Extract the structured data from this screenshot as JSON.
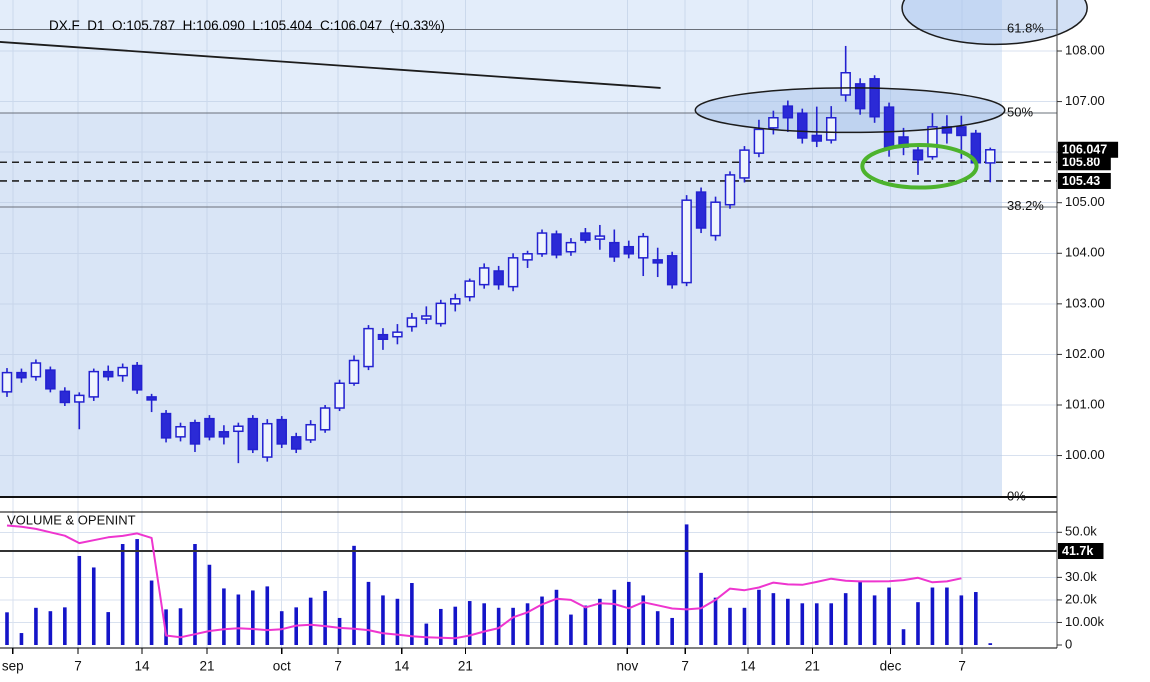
{
  "header": {
    "text": "DX.F  D1  O:105.787  H:106.090  L:105.404  C:106.047  (+0.33%)",
    "symbol": "DX.F",
    "timeframe": "D1",
    "open": "105.787",
    "high": "106.090",
    "low": "105.404",
    "close": "106.047",
    "change_pct": "(+0.33%)"
  },
  "colors": {
    "plot_bg": "#e3edfa",
    "fib_zone_bg": "#d9e5f6",
    "grid": "#b9c9e2",
    "candle_stroke": "#2321d0",
    "candle_down_fill": "#2b2ad6",
    "candle_up_fill": "#eff5fd",
    "volume_bar": "#1414c8",
    "oi_line": "#ee35cf",
    "marker_bg": "#000000",
    "marker_fg": "#ffffff",
    "annotation": "#1c1c1c",
    "green_circle": "#4db32d",
    "dashed_level": "#222222"
  },
  "price_axis": {
    "ticks": [
      {
        "label": "108.00",
        "value": 108
      },
      {
        "label": "107.00",
        "value": 107
      },
      {
        "label": "106.00",
        "value": 106
      },
      {
        "label": "105.00",
        "value": 105
      },
      {
        "label": "104.00",
        "value": 104
      },
      {
        "label": "103.00",
        "value": 103
      },
      {
        "label": "102.00",
        "value": 102
      },
      {
        "label": "101.00",
        "value": 101
      },
      {
        "label": "100.00",
        "value": 100
      }
    ],
    "markers": [
      {
        "label": "105.80",
        "value": 105.8
      },
      {
        "label": "106.047",
        "value": 106.047
      },
      {
        "label": "105.43",
        "value": 105.43
      }
    ]
  },
  "volume_axis": {
    "ticks": [
      {
        "label": "50.0k",
        "value": 50
      },
      {
        "label": "30.0k",
        "value": 30
      },
      {
        "label": "20.0k",
        "value": 20
      },
      {
        "label": "10.00k",
        "value": 10
      },
      {
        "label": "0",
        "value": 0
      }
    ],
    "marker": {
      "label": "41.7k",
      "value": 41.7
    }
  },
  "x_axis": {
    "ticks": [
      {
        "label": "sep",
        "i": 0.4
      },
      {
        "label": "7",
        "i": 4.91
      },
      {
        "label": "14",
        "i": 9.34
      },
      {
        "label": "21",
        "i": 13.83
      },
      {
        "label": "oct",
        "i": 19.0
      },
      {
        "label": "7",
        "i": 22.9
      },
      {
        "label": "14",
        "i": 27.3
      },
      {
        "label": "21",
        "i": 31.7
      },
      {
        "label": "nov",
        "i": 42.9
      },
      {
        "label": "7",
        "i": 46.9
      },
      {
        "label": "14",
        "i": 51.25
      },
      {
        "label": "21",
        "i": 55.7
      },
      {
        "label": "dec",
        "i": 61.1
      },
      {
        "label": "7",
        "i": 66.05
      }
    ]
  },
  "volume_pane": {
    "title": "VOLUME & OPENINT"
  },
  "chart_data": {
    "type": "candlestick",
    "title": "DX.F D1",
    "x_unit": "trading day (Sep - Dec)",
    "price_range": [
      99.0,
      108.5
    ],
    "fib_levels": [
      {
        "label": "61.8%",
        "price": 108.43
      },
      {
        "label": "50%",
        "price": 106.77
      },
      {
        "label": "38.2%",
        "price": 104.92
      },
      {
        "label": "0%",
        "price": 99.18
      }
    ],
    "dashed_levels": [
      105.8,
      105.43
    ],
    "volume_marker_k": 41.7,
    "edge_candle": [
      101.3,
      101.72,
      101.22,
      101.58
    ],
    "candles": [
      [
        101.26,
        101.73,
        101.16,
        101.64
      ],
      [
        101.64,
        101.72,
        101.44,
        101.54
      ],
      [
        101.56,
        101.9,
        101.48,
        101.83
      ],
      [
        101.69,
        101.76,
        101.25,
        101.32
      ],
      [
        101.27,
        101.35,
        100.98,
        101.05
      ],
      [
        101.06,
        101.25,
        100.52,
        101.19
      ],
      [
        101.16,
        101.72,
        101.08,
        101.66
      ],
      [
        101.66,
        101.78,
        101.48,
        101.56
      ],
      [
        101.58,
        101.82,
        101.46,
        101.74
      ],
      [
        101.78,
        101.85,
        101.22,
        101.3
      ],
      [
        101.16,
        101.22,
        100.86,
        101.1
      ],
      [
        100.83,
        100.9,
        100.26,
        100.35
      ],
      [
        100.37,
        100.65,
        100.28,
        100.57
      ],
      [
        100.65,
        100.71,
        100.07,
        100.23
      ],
      [
        100.73,
        100.8,
        100.3,
        100.37
      ],
      [
        100.47,
        100.6,
        100.22,
        100.37
      ],
      [
        100.48,
        100.65,
        99.85,
        100.58
      ],
      [
        100.73,
        100.8,
        100.05,
        100.12
      ],
      [
        99.97,
        100.72,
        99.88,
        100.63
      ],
      [
        100.71,
        100.78,
        100.15,
        100.23
      ],
      [
        100.37,
        100.45,
        100.05,
        100.13
      ],
      [
        100.31,
        100.7,
        100.25,
        100.61
      ],
      [
        100.51,
        101.0,
        100.45,
        100.94
      ],
      [
        100.94,
        101.5,
        100.88,
        101.43
      ],
      [
        101.43,
        101.98,
        101.38,
        101.88
      ],
      [
        101.76,
        102.58,
        101.69,
        102.51
      ],
      [
        102.39,
        102.52,
        102.09,
        102.3
      ],
      [
        102.35,
        102.6,
        102.2,
        102.44
      ],
      [
        102.55,
        102.82,
        102.45,
        102.72
      ],
      [
        102.7,
        102.95,
        102.6,
        102.76
      ],
      [
        102.61,
        103.08,
        102.55,
        103.01
      ],
      [
        103.0,
        103.2,
        102.85,
        103.1
      ],
      [
        103.14,
        103.5,
        103.05,
        103.45
      ],
      [
        103.38,
        103.8,
        103.3,
        103.71
      ],
      [
        103.65,
        103.75,
        103.28,
        103.38
      ],
      [
        103.34,
        104.0,
        103.25,
        103.91
      ],
      [
        103.87,
        104.05,
        103.71,
        103.99
      ],
      [
        103.99,
        104.47,
        103.93,
        104.4
      ],
      [
        104.38,
        104.45,
        103.9,
        103.97
      ],
      [
        104.03,
        104.3,
        103.95,
        104.21
      ],
      [
        104.4,
        104.5,
        104.2,
        104.26
      ],
      [
        104.28,
        104.56,
        104.07,
        104.34
      ],
      [
        104.21,
        104.47,
        103.83,
        103.93
      ],
      [
        104.13,
        104.25,
        103.9,
        103.99
      ],
      [
        103.91,
        104.4,
        103.55,
        104.33
      ],
      [
        103.87,
        104.11,
        103.53,
        103.81
      ],
      [
        103.95,
        104.03,
        103.3,
        103.38
      ],
      [
        103.42,
        105.15,
        103.35,
        105.05
      ],
      [
        105.21,
        105.3,
        104.4,
        104.5
      ],
      [
        104.35,
        105.12,
        104.25,
        105.01
      ],
      [
        104.96,
        105.62,
        104.88,
        105.55
      ],
      [
        105.49,
        106.12,
        105.4,
        106.04
      ],
      [
        105.98,
        106.64,
        105.9,
        106.45
      ],
      [
        106.48,
        106.82,
        106.35,
        106.68
      ],
      [
        106.91,
        107.02,
        106.4,
        106.68
      ],
      [
        106.77,
        106.86,
        106.17,
        106.28
      ],
      [
        106.33,
        106.9,
        106.1,
        106.22
      ],
      [
        106.24,
        106.91,
        106.17,
        106.68
      ],
      [
        107.13,
        108.1,
        107.0,
        107.57
      ],
      [
        107.35,
        107.46,
        106.74,
        106.86
      ],
      [
        107.45,
        107.52,
        106.58,
        106.7
      ],
      [
        106.89,
        106.98,
        105.91,
        106.1
      ],
      [
        106.3,
        106.48,
        105.94,
        106.1
      ],
      [
        106.04,
        106.17,
        105.55,
        105.85
      ],
      [
        105.91,
        106.77,
        105.85,
        106.5
      ],
      [
        106.5,
        106.73,
        106.17,
        106.38
      ],
      [
        106.5,
        106.72,
        105.87,
        106.33
      ],
      [
        106.37,
        106.44,
        105.7,
        105.79
      ],
      [
        105.787,
        106.09,
        105.404,
        106.047
      ]
    ],
    "volume_k": [
      14.5,
      5.3,
      16.5,
      15,
      16.7,
      39.5,
      34.4,
      14.6,
      44.8,
      47,
      28.6,
      15.8,
      16.3,
      44.8,
      35.6,
      25.1,
      22.4,
      24.2,
      26,
      15,
      16.7,
      21,
      24,
      12,
      44,
      28,
      22,
      20.5,
      27.5,
      9.5,
      16,
      17,
      19.5,
      18.5,
      16.5,
      16.5,
      18.5,
      21.5,
      24.5,
      13.5,
      17.5,
      20.5,
      24.5,
      28,
      22,
      15,
      12,
      53.5,
      32,
      21,
      16.5,
      16.5,
      24.5,
      23,
      20.5,
      18.5,
      18.5,
      18.5,
      23,
      28.5,
      22,
      25.5,
      7,
      19,
      25.5,
      25.5,
      22,
      23.5,
      0.8
    ],
    "open_interest_k": [
      53,
      52.5,
      51.5,
      50,
      48.5,
      45.2,
      46.5,
      47.8,
      48.4,
      49.5,
      47.5,
      4.2,
      3.4,
      4.8,
      6.2,
      7,
      7.4,
      7.1,
      6.6,
      7,
      8.6,
      9,
      8.4,
      7.6,
      7.2,
      6.6,
      5.2,
      4.6,
      3.9,
      3.4,
      3.2,
      3,
      4.2,
      6,
      7.5,
      12.3,
      14.5,
      18,
      20.5,
      20,
      16.7,
      18.5,
      18.2,
      16.3,
      19,
      17.6,
      16.2,
      15.8,
      16.3,
      20,
      25,
      24.3,
      25.5,
      27.7,
      26.9,
      26.7,
      28,
      29.4,
      28.5,
      28.2,
      28.2,
      28.3,
      28.8,
      29.8,
      27.8,
      28.2,
      29.6,
      null,
      null
    ],
    "annotations": {
      "trendline": {
        "i1": -0.5,
        "p1": 108.18,
        "i2": 45.2,
        "p2": 107.27
      },
      "consolidation_ellipse": {
        "i": 58.3,
        "p": 106.83,
        "ri": 10.7,
        "rp": 0.44
      },
      "target_ellipse": {
        "i": 68.3,
        "p": 108.85,
        "ri": 6.4,
        "rp": 0.72
      },
      "green_circle": {
        "i": 63.1,
        "p": 105.72,
        "ri": 3.95,
        "rp": 0.42
      }
    }
  }
}
